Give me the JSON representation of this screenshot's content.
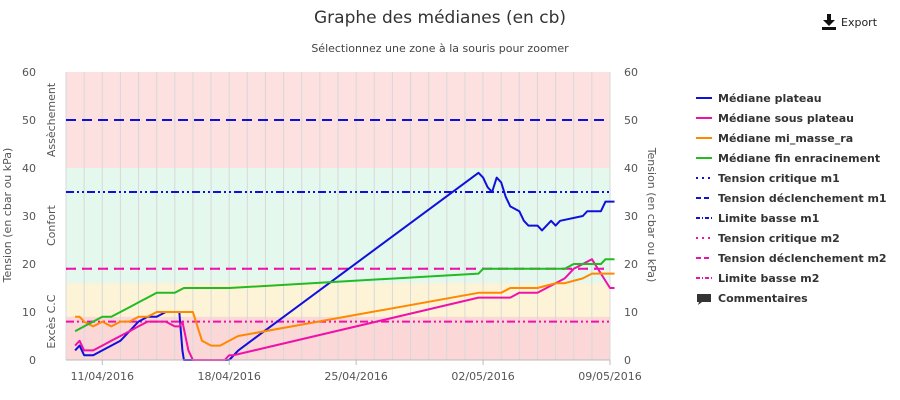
{
  "header": {
    "title": "Graphe des médianes (en cb)",
    "subtitle": "Sélectionnez une zone à la souris pour zoomer",
    "export_label": "Export"
  },
  "legend": {
    "comments_label": "Commentaires"
  },
  "colors": {
    "plateau": "#1010dd",
    "sous_plateau": "#ee11aa",
    "mi_masse": "#ff8800",
    "fin_enracinement": "#22bb22",
    "zone_assechement": "#fde0e0",
    "zone_confort": "#e4f8ee",
    "zone_exces_low": "#fbd7d8",
    "zone_exces_high": "#fdf4d8",
    "grid": "#d8d8d8"
  },
  "chart_data": {
    "type": "line",
    "title": "Graphe des médianes (en cb)",
    "subtitle": "Sélectionnez une zone à la souris pour zoomer",
    "ylabel_left": "Tension (en cbar ou kPa)",
    "ylabel_right": "Tension (en cbar ou kPa)",
    "x_range": [
      "2016-04-09",
      "2016-05-09"
    ],
    "ylim": [
      0,
      60
    ],
    "y_ticks": [
      0,
      10,
      20,
      30,
      40,
      50,
      60
    ],
    "x_ticks": [
      "2016-04-11",
      "2016-04-18",
      "2016-04-25",
      "2016-05-02",
      "2016-05-09"
    ],
    "x_tick_labels": [
      "11/04/2016",
      "18/04/2016",
      "25/04/2016",
      "02/05/2016",
      "09/05/2016"
    ],
    "zones": [
      {
        "label": "Assèchement",
        "from": 40,
        "to": 60,
        "color": "#fde0e0"
      },
      {
        "label": "Confort",
        "from": 16,
        "to": 40,
        "color": "#e4f8ee"
      },
      {
        "label": "Excès C.C",
        "from": 0,
        "to": 16,
        "color": "#fbd7d8"
      }
    ],
    "legend_position": "right",
    "series": [
      {
        "name": "Médiane plateau",
        "kind": "line",
        "color": "#1010dd",
        "points": [
          [
            "2016-04-09 12:00",
            2
          ],
          [
            "2016-04-09 18:00",
            3
          ],
          [
            "2016-04-10 00:00",
            1
          ],
          [
            "2016-04-10 12:00",
            1
          ],
          [
            "2016-04-11 00:00",
            2
          ],
          [
            "2016-04-11 12:00",
            3
          ],
          [
            "2016-04-12 00:00",
            4
          ],
          [
            "2016-04-12 12:00",
            6
          ],
          [
            "2016-04-13 00:00",
            8
          ],
          [
            "2016-04-13 12:00",
            9
          ],
          [
            "2016-04-14 00:00",
            9
          ],
          [
            "2016-04-14 12:00",
            10
          ],
          [
            "2016-04-15 00:00",
            10
          ],
          [
            "2016-04-15 06:00",
            10
          ],
          [
            "2016-04-15 10:00",
            2
          ],
          [
            "2016-04-15 12:00",
            0
          ],
          [
            "2016-04-18 00:00",
            0
          ],
          [
            "2016-04-18 12:00",
            2
          ],
          [
            "2016-05-01 18:00",
            39
          ],
          [
            "2016-05-02 00:00",
            38
          ],
          [
            "2016-05-02 06:00",
            36
          ],
          [
            "2016-05-02 12:00",
            35
          ],
          [
            "2016-05-02 18:00",
            38
          ],
          [
            "2016-05-03 00:00",
            37
          ],
          [
            "2016-05-03 06:00",
            34
          ],
          [
            "2016-05-03 12:00",
            32
          ],
          [
            "2016-05-04 00:00",
            31
          ],
          [
            "2016-05-04 06:00",
            29
          ],
          [
            "2016-05-04 12:00",
            28
          ],
          [
            "2016-05-05 00:00",
            28
          ],
          [
            "2016-05-05 06:00",
            27
          ],
          [
            "2016-05-05 18:00",
            29
          ],
          [
            "2016-05-06 00:00",
            28
          ],
          [
            "2016-05-06 06:00",
            29
          ],
          [
            "2016-05-07 12:00",
            30
          ],
          [
            "2016-05-07 18:00",
            31
          ],
          [
            "2016-05-08 12:00",
            31
          ],
          [
            "2016-05-08 18:00",
            33
          ],
          [
            "2016-05-09 06:00",
            33
          ]
        ]
      },
      {
        "name": "Médiane sous plateau",
        "kind": "line",
        "color": "#ee11aa",
        "points": [
          [
            "2016-04-09 12:00",
            3
          ],
          [
            "2016-04-09 18:00",
            4
          ],
          [
            "2016-04-10 00:00",
            2
          ],
          [
            "2016-04-10 12:00",
            2
          ],
          [
            "2016-04-11 00:00",
            3
          ],
          [
            "2016-04-11 12:00",
            4
          ],
          [
            "2016-04-12 00:00",
            5
          ],
          [
            "2016-04-12 12:00",
            6
          ],
          [
            "2016-04-13 00:00",
            7
          ],
          [
            "2016-04-13 12:00",
            8
          ],
          [
            "2016-04-14 12:00",
            8
          ],
          [
            "2016-04-15 00:00",
            7
          ],
          [
            "2016-04-15 06:00",
            7
          ],
          [
            "2016-04-15 10:00",
            8
          ],
          [
            "2016-04-15 18:00",
            2
          ],
          [
            "2016-04-16 00:00",
            0
          ],
          [
            "2016-04-17 18:00",
            0
          ],
          [
            "2016-04-18 00:00",
            1
          ],
          [
            "2016-04-18 06:00",
            1
          ],
          [
            "2016-05-01 18:00",
            13
          ],
          [
            "2016-05-03 12:00",
            13
          ],
          [
            "2016-05-04 00:00",
            14
          ],
          [
            "2016-05-05 00:00",
            14
          ],
          [
            "2016-05-05 12:00",
            15
          ],
          [
            "2016-05-06 00:00",
            16
          ],
          [
            "2016-05-06 12:00",
            17
          ],
          [
            "2016-05-07 00:00",
            19
          ],
          [
            "2016-05-07 12:00",
            20
          ],
          [
            "2016-05-08 00:00",
            21
          ],
          [
            "2016-05-08 12:00",
            18
          ],
          [
            "2016-05-09 00:00",
            15
          ],
          [
            "2016-05-09 06:00",
            15
          ]
        ]
      },
      {
        "name": "Médiane mi_masse_ra",
        "kind": "line",
        "color": "#ff8800",
        "points": [
          [
            "2016-04-09 12:00",
            9
          ],
          [
            "2016-04-09 18:00",
            9
          ],
          [
            "2016-04-10 00:00",
            8
          ],
          [
            "2016-04-10 12:00",
            7
          ],
          [
            "2016-04-11 00:00",
            8
          ],
          [
            "2016-04-11 12:00",
            7
          ],
          [
            "2016-04-12 00:00",
            8
          ],
          [
            "2016-04-12 12:00",
            8
          ],
          [
            "2016-04-13 00:00",
            9
          ],
          [
            "2016-04-13 12:00",
            9
          ],
          [
            "2016-04-14 00:00",
            10
          ],
          [
            "2016-04-15 12:00",
            10
          ],
          [
            "2016-04-16 00:00",
            10
          ],
          [
            "2016-04-16 12:00",
            4
          ],
          [
            "2016-04-17 00:00",
            3
          ],
          [
            "2016-04-17 12:00",
            3
          ],
          [
            "2016-04-18 00:00",
            4
          ],
          [
            "2016-04-18 12:00",
            5
          ],
          [
            "2016-05-01 18:00",
            14
          ],
          [
            "2016-05-03 00:00",
            14
          ],
          [
            "2016-05-03 12:00",
            15
          ],
          [
            "2016-05-05 00:00",
            15
          ],
          [
            "2016-05-06 00:00",
            16
          ],
          [
            "2016-05-06 12:00",
            16
          ],
          [
            "2016-05-07 12:00",
            17
          ],
          [
            "2016-05-08 00:00",
            18
          ],
          [
            "2016-05-09 06:00",
            18
          ]
        ]
      },
      {
        "name": "Médiane fin enracinement",
        "kind": "line",
        "color": "#22bb22",
        "points": [
          [
            "2016-04-09 12:00",
            6
          ],
          [
            "2016-04-10 00:00",
            7
          ],
          [
            "2016-04-10 12:00",
            8
          ],
          [
            "2016-04-11 00:00",
            9
          ],
          [
            "2016-04-11 12:00",
            9
          ],
          [
            "2016-04-12 00:00",
            10
          ],
          [
            "2016-04-12 12:00",
            11
          ],
          [
            "2016-04-13 00:00",
            12
          ],
          [
            "2016-04-13 12:00",
            13
          ],
          [
            "2016-04-14 00:00",
            14
          ],
          [
            "2016-04-14 12:00",
            14
          ],
          [
            "2016-04-15 00:00",
            14
          ],
          [
            "2016-04-15 12:00",
            15
          ],
          [
            "2016-04-18 00:00",
            15
          ],
          [
            "2016-05-01 18:00",
            18
          ],
          [
            "2016-05-02 00:00",
            19
          ],
          [
            "2016-05-06 12:00",
            19
          ],
          [
            "2016-05-07 00:00",
            20
          ],
          [
            "2016-05-08 12:00",
            20
          ],
          [
            "2016-05-08 18:00",
            21
          ],
          [
            "2016-05-09 06:00",
            21
          ]
        ]
      },
      {
        "name": "Tension critique m1",
        "kind": "hline",
        "value": 50,
        "color": "#1010dd",
        "dash": "2,6"
      },
      {
        "name": "Tension déclenchement m1",
        "kind": "hline",
        "value": 50,
        "color": "#1010dd",
        "dash": "10,6"
      },
      {
        "name": "Limite basse m1",
        "kind": "hline",
        "value": 35,
        "color": "#1010dd",
        "dash": "8,3,2,3,2,3"
      },
      {
        "name": "Tension critique m2",
        "kind": "hline",
        "value": 19,
        "color": "#ee11aa",
        "dash": "2,6"
      },
      {
        "name": "Tension déclenchement m2",
        "kind": "hline",
        "value": 19,
        "color": "#ee11aa",
        "dash": "10,6"
      },
      {
        "name": "Limite basse m2",
        "kind": "hline",
        "value": 8,
        "color": "#ee11aa",
        "dash": "8,3,2,3,2,3"
      }
    ]
  }
}
